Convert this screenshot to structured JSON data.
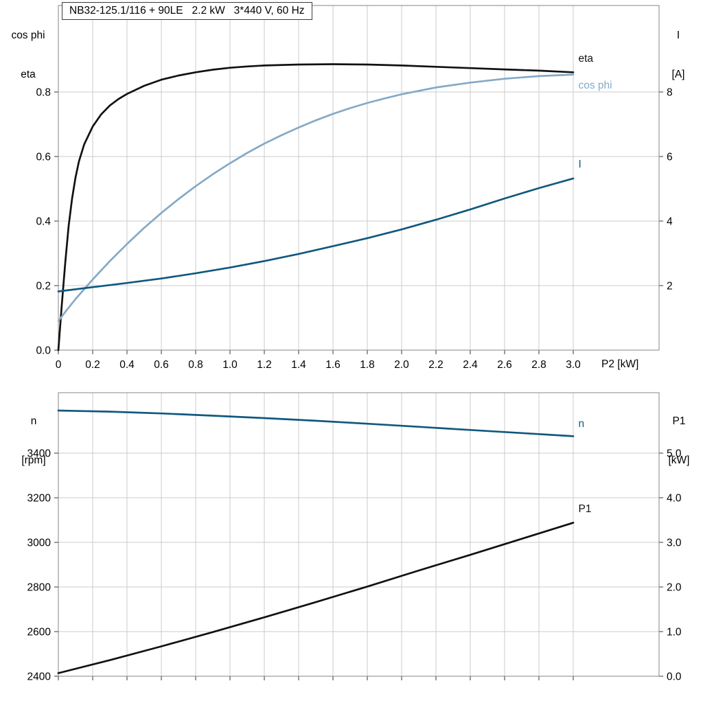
{
  "header": {
    "title": "NB32-125.1/116 + 90LE   2.2 kW   3*440 V, 60 Hz"
  },
  "style": {
    "grid_color": "#cbcbcb",
    "frame_color": "#858585",
    "tick_color": "#333333",
    "eta_color": "#111111",
    "cosphi_color": "#84a9c7",
    "current_color": "#10587f",
    "speed_color": "#10587f",
    "p1_color": "#111111"
  },
  "chart_data": [
    {
      "type": "line",
      "position": "top",
      "title": "NB32-125.1/116 + 90LE   2.2 kW   3*440 V, 60 Hz",
      "left_axis_title": [
        "cos phi",
        "eta"
      ],
      "right_axis_title": [
        "I",
        "[A]"
      ],
      "x_axis_label": "P2 [kW]",
      "xlim": [
        0,
        3.5
      ],
      "left_ylim": [
        0,
        1.068
      ],
      "right_ylim": [
        0,
        10.68
      ],
      "grid": true,
      "x_ticks": {
        "values": [
          0,
          0.2,
          0.4,
          0.6,
          0.8,
          1.0,
          1.2,
          1.4,
          1.6,
          1.8,
          2.0,
          2.2,
          2.4,
          2.6,
          2.8,
          3.0
        ],
        "labels": [
          "0",
          "0.2",
          "0.4",
          "0.6",
          "0.8",
          "1.0",
          "1.2",
          "1.4",
          "1.6",
          "1.8",
          "2.0",
          "2.2",
          "2.4",
          "2.6",
          "2.8",
          "3.0"
        ]
      },
      "left_ticks": {
        "values": [
          0,
          0.2,
          0.4,
          0.6,
          0.8
        ],
        "labels": [
          "0.0",
          "0.2",
          "0.4",
          "0.6",
          "0.8"
        ]
      },
      "right_ticks": {
        "values": [
          2,
          4,
          6,
          8
        ],
        "labels": [
          "2",
          "4",
          "6",
          "8"
        ]
      },
      "series": [
        {
          "name": "eta",
          "axis": "left",
          "color": "#111111",
          "label_at": [
            3.03,
            0.9
          ],
          "points": [
            [
              0,
              0
            ],
            [
              0.02,
              0.14
            ],
            [
              0.04,
              0.27
            ],
            [
              0.06,
              0.385
            ],
            [
              0.08,
              0.47
            ],
            [
              0.1,
              0.535
            ],
            [
              0.12,
              0.585
            ],
            [
              0.15,
              0.637
            ],
            [
              0.2,
              0.693
            ],
            [
              0.25,
              0.731
            ],
            [
              0.3,
              0.758
            ],
            [
              0.35,
              0.778
            ],
            [
              0.4,
              0.794
            ],
            [
              0.5,
              0.819
            ],
            [
              0.6,
              0.838
            ],
            [
              0.7,
              0.851
            ],
            [
              0.8,
              0.861
            ],
            [
              0.9,
              0.869
            ],
            [
              1.0,
              0.875
            ],
            [
              1.1,
              0.879
            ],
            [
              1.2,
              0.882
            ],
            [
              1.4,
              0.885
            ],
            [
              1.6,
              0.886
            ],
            [
              1.8,
              0.885
            ],
            [
              2.0,
              0.882
            ],
            [
              2.2,
              0.878
            ],
            [
              2.4,
              0.874
            ],
            [
              2.6,
              0.87
            ],
            [
              2.8,
              0.866
            ],
            [
              3.0,
              0.861
            ]
          ]
        },
        {
          "name": "cos phi",
          "axis": "left",
          "color": "#84a9c7",
          "label_at": [
            3.03,
            0.818
          ],
          "points": [
            [
              0,
              0.09
            ],
            [
              0.05,
              0.125
            ],
            [
              0.1,
              0.158
            ],
            [
              0.2,
              0.219
            ],
            [
              0.3,
              0.276
            ],
            [
              0.4,
              0.329
            ],
            [
              0.5,
              0.379
            ],
            [
              0.6,
              0.425
            ],
            [
              0.7,
              0.468
            ],
            [
              0.8,
              0.508
            ],
            [
              0.9,
              0.545
            ],
            [
              1.0,
              0.579
            ],
            [
              1.1,
              0.611
            ],
            [
              1.2,
              0.64
            ],
            [
              1.3,
              0.666
            ],
            [
              1.4,
              0.69
            ],
            [
              1.5,
              0.712
            ],
            [
              1.6,
              0.732
            ],
            [
              1.7,
              0.75
            ],
            [
              1.8,
              0.766
            ],
            [
              1.9,
              0.78
            ],
            [
              2.0,
              0.793
            ],
            [
              2.2,
              0.814
            ],
            [
              2.4,
              0.829
            ],
            [
              2.6,
              0.841
            ],
            [
              2.8,
              0.849
            ],
            [
              3.0,
              0.854
            ]
          ]
        },
        {
          "name": "I",
          "axis": "right",
          "color": "#10587f",
          "label_at": [
            3.03,
            5.72
          ],
          "points": [
            [
              0,
              1.82
            ],
            [
              0.2,
              1.95
            ],
            [
              0.4,
              2.08
            ],
            [
              0.6,
              2.22
            ],
            [
              0.8,
              2.38
            ],
            [
              1.0,
              2.56
            ],
            [
              1.2,
              2.76
            ],
            [
              1.4,
              2.98
            ],
            [
              1.6,
              3.22
            ],
            [
              1.8,
              3.47
            ],
            [
              2.0,
              3.74
            ],
            [
              2.2,
              4.04
            ],
            [
              2.4,
              4.36
            ],
            [
              2.6,
              4.7
            ],
            [
              2.8,
              5.02
            ],
            [
              3.0,
              5.32
            ]
          ]
        }
      ]
    },
    {
      "type": "line",
      "position": "bottom",
      "left_axis_title": [
        "n",
        "[rpm]"
      ],
      "right_axis_title": [
        "P1",
        "[kW]"
      ],
      "x_axis_label": "",
      "xlim": [
        0,
        3.5
      ],
      "left_ylim": [
        2400,
        3671
      ],
      "right_ylim": [
        0,
        6.354
      ],
      "grid": true,
      "x_ticks": {
        "values": [
          0,
          0.2,
          0.4,
          0.6,
          0.8,
          1.0,
          1.2,
          1.4,
          1.6,
          1.8,
          2.0,
          2.2,
          2.4,
          2.6,
          2.8,
          3.0
        ],
        "labels": null
      },
      "left_ticks": {
        "values": [
          2400,
          2600,
          2800,
          3000,
          3200,
          3400
        ],
        "labels": [
          "2400",
          "2600",
          "2800",
          "3000",
          "3200",
          "3400"
        ]
      },
      "right_ticks": {
        "values": [
          0,
          1,
          2,
          3,
          4,
          5
        ],
        "labels": [
          "0.0",
          "1.0",
          "2.0",
          "3.0",
          "4.0",
          "5.0"
        ]
      },
      "series": [
        {
          "name": "n",
          "axis": "left",
          "color": "#10587f",
          "label_at": [
            3.03,
            3525
          ],
          "points": [
            [
              0,
              3591
            ],
            [
              0.3,
              3586
            ],
            [
              0.6,
              3578
            ],
            [
              0.9,
              3568
            ],
            [
              1.2,
              3557
            ],
            [
              1.5,
              3545
            ],
            [
              1.8,
              3532
            ],
            [
              2.1,
              3518
            ],
            [
              2.4,
              3504
            ],
            [
              2.7,
              3490
            ],
            [
              3.0,
              3476
            ]
          ]
        },
        {
          "name": "P1",
          "axis": "right",
          "color": "#111111",
          "label_at": [
            3.03,
            3.73
          ],
          "points": [
            [
              0,
              0.07
            ],
            [
              0.3,
              0.36
            ],
            [
              0.6,
              0.67
            ],
            [
              0.9,
              0.99
            ],
            [
              1.2,
              1.32
            ],
            [
              1.5,
              1.66
            ],
            [
              1.8,
              2.01
            ],
            [
              2.1,
              2.37
            ],
            [
              2.4,
              2.72
            ],
            [
              2.7,
              3.08
            ],
            [
              3.0,
              3.44
            ]
          ]
        }
      ]
    }
  ]
}
